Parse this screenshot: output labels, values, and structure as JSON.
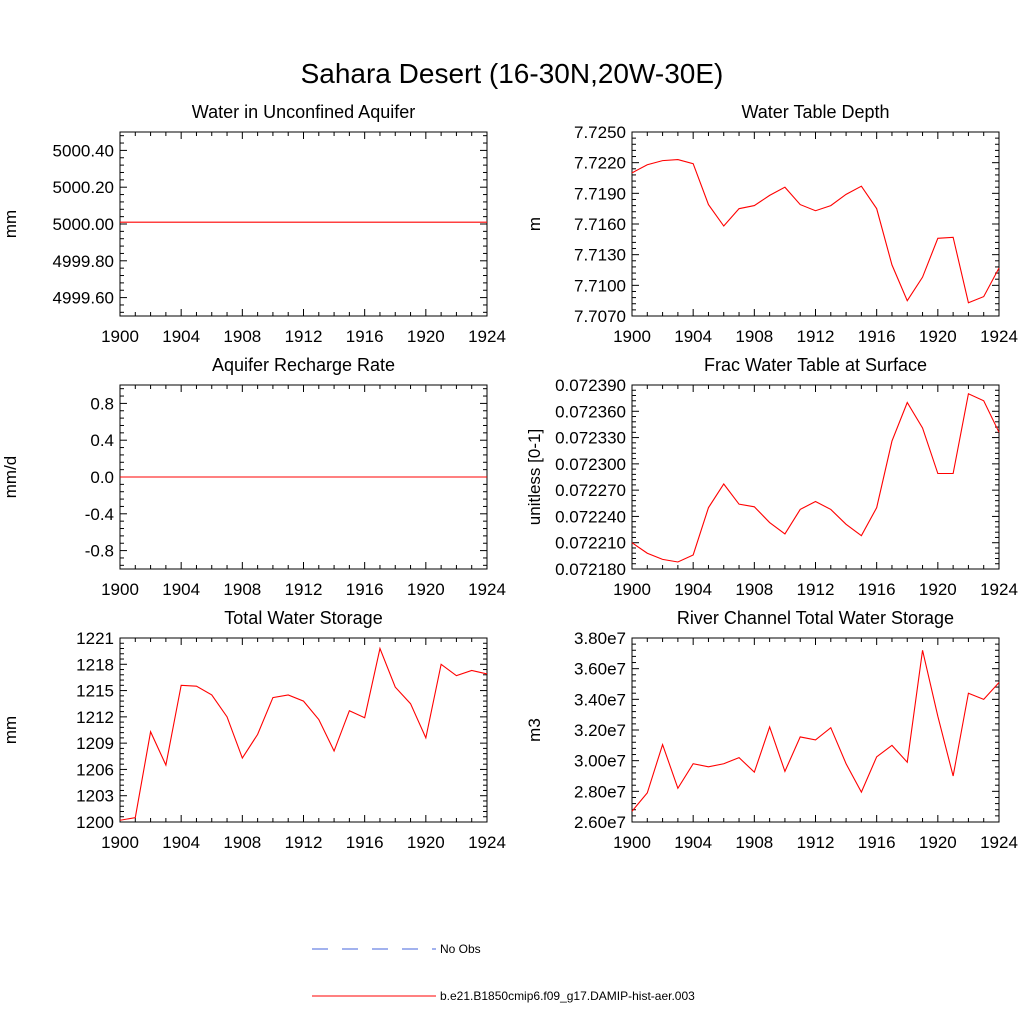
{
  "figure_title": "Sahara Desert (16-30N,20W-30E)",
  "chart_data": [
    {
      "type": "line",
      "title": "Water in Unconfined Aquifer",
      "xlabel": "",
      "ylabel": "mm",
      "xlim": [
        1900,
        1924
      ],
      "ylim": [
        4999.5,
        5000.5
      ],
      "xticks": [
        "1900",
        "1904",
        "1908",
        "1912",
        "1916",
        "1920",
        "1924"
      ],
      "yticks": [
        4999.6,
        4999.8,
        5000.0,
        5000.2,
        5000.4
      ],
      "ytick_labels": [
        "4999.60",
        "4999.80",
        "5000.00",
        "5000.20",
        "5000.40"
      ],
      "grid": false,
      "series": [
        {
          "name": "b.e21.B1850cmip6.f09_g17.DAMIP-hist-aer.003",
          "color": "#ff0000",
          "x": [
            1900,
            1901,
            1902,
            1903,
            1904,
            1905,
            1906,
            1907,
            1908,
            1909,
            1910,
            1911,
            1912,
            1913,
            1914,
            1915,
            1916,
            1917,
            1918,
            1919,
            1920,
            1921,
            1922,
            1923,
            1924
          ],
          "values": [
            5000.01,
            5000.01,
            5000.01,
            5000.01,
            5000.01,
            5000.01,
            5000.01,
            5000.01,
            5000.01,
            5000.01,
            5000.01,
            5000.01,
            5000.01,
            5000.01,
            5000.01,
            5000.01,
            5000.01,
            5000.01,
            5000.01,
            5000.01,
            5000.01,
            5000.01,
            5000.01,
            5000.01,
            5000.01
          ]
        }
      ]
    },
    {
      "type": "line",
      "title": "Water Table Depth",
      "xlabel": "",
      "ylabel": "m",
      "xlim": [
        1900,
        1924
      ],
      "ylim": [
        7.707,
        7.725
      ],
      "xticks": [
        "1900",
        "1904",
        "1908",
        "1912",
        "1916",
        "1920",
        "1924"
      ],
      "yticks": [
        7.707,
        7.71,
        7.713,
        7.716,
        7.719,
        7.722,
        7.725
      ],
      "ytick_labels": [
        "7.7070",
        "7.7100",
        "7.7130",
        "7.7160",
        "7.7190",
        "7.7220",
        "7.7250"
      ],
      "grid": false,
      "series": [
        {
          "name": "b.e21.B1850cmip6.f09_g17.DAMIP-hist-aer.003",
          "color": "#ff0000",
          "x": [
            1900,
            1901,
            1902,
            1903,
            1904,
            1905,
            1906,
            1907,
            1908,
            1909,
            1910,
            1911,
            1912,
            1913,
            1914,
            1915,
            1916,
            1917,
            1918,
            1919,
            1920,
            1921,
            1922,
            1923,
            1924
          ],
          "values": [
            7.721,
            7.7218,
            7.7222,
            7.7223,
            7.7219,
            7.7179,
            7.7158,
            7.7175,
            7.7178,
            7.7188,
            7.7196,
            7.7179,
            7.7173,
            7.7178,
            7.7189,
            7.7197,
            7.7175,
            7.712,
            7.7085,
            7.7108,
            7.7146,
            7.7147,
            7.7083,
            7.7089,
            7.7117
          ]
        }
      ]
    },
    {
      "type": "line",
      "title": "Aquifer Recharge Rate",
      "xlabel": "",
      "ylabel": "mm/d",
      "xlim": [
        1900,
        1924
      ],
      "ylim": [
        -1.0,
        1.0
      ],
      "xticks": [
        "1900",
        "1904",
        "1908",
        "1912",
        "1916",
        "1920",
        "1924"
      ],
      "yticks": [
        -0.8,
        -0.4,
        0.0,
        0.4,
        0.8
      ],
      "ytick_labels": [
        "-0.8",
        "-0.4",
        "0.0",
        "0.4",
        "0.8"
      ],
      "grid": false,
      "series": [
        {
          "name": "b.e21.B1850cmip6.f09_g17.DAMIP-hist-aer.003",
          "color": "#ff0000",
          "x": [
            1900,
            1901,
            1902,
            1903,
            1904,
            1905,
            1906,
            1907,
            1908,
            1909,
            1910,
            1911,
            1912,
            1913,
            1914,
            1915,
            1916,
            1917,
            1918,
            1919,
            1920,
            1921,
            1922,
            1923,
            1924
          ],
          "values": [
            0,
            0,
            0,
            0,
            0,
            0,
            0,
            0,
            0,
            0,
            0,
            0,
            0,
            0,
            0,
            0,
            0,
            0,
            0,
            0,
            0,
            0,
            0,
            0,
            0
          ]
        }
      ]
    },
    {
      "type": "line",
      "title": "Frac Water Table at Surface",
      "xlabel": "",
      "ylabel": "unitless [0-1]",
      "xlim": [
        1900,
        1924
      ],
      "ylim": [
        0.07218,
        0.07239
      ],
      "xticks": [
        "1900",
        "1904",
        "1908",
        "1912",
        "1916",
        "1920",
        "1924"
      ],
      "yticks": [
        0.07218,
        0.07221,
        0.07224,
        0.07227,
        0.0723,
        0.07233,
        0.07236,
        0.07239
      ],
      "ytick_labels": [
        "0.072180",
        "0.072210",
        "0.072240",
        "0.072270",
        "0.072300",
        "0.072330",
        "0.072360",
        "0.072390"
      ],
      "grid": false,
      "series": [
        {
          "name": "b.e21.B1850cmip6.f09_g17.DAMIP-hist-aer.003",
          "color": "#ff0000",
          "x": [
            1900,
            1901,
            1902,
            1903,
            1904,
            1905,
            1906,
            1907,
            1908,
            1909,
            1910,
            1911,
            1912,
            1913,
            1914,
            1915,
            1916,
            1917,
            1918,
            1919,
            1920,
            1921,
            1922,
            1923,
            1924
          ],
          "values": [
            0.07221,
            0.072198,
            0.072191,
            0.072188,
            0.072196,
            0.07225,
            0.072277,
            0.072254,
            0.072251,
            0.072233,
            0.07222,
            0.072248,
            0.072257,
            0.072248,
            0.072231,
            0.072218,
            0.07225,
            0.072326,
            0.07237,
            0.072341,
            0.072289,
            0.072289,
            0.07238,
            0.072372,
            0.072336
          ]
        }
      ]
    },
    {
      "type": "line",
      "title": "Total Water Storage",
      "xlabel": "",
      "ylabel": "mm",
      "xlim": [
        1900,
        1924
      ],
      "ylim": [
        1200,
        1221
      ],
      "xticks": [
        "1900",
        "1904",
        "1908",
        "1912",
        "1916",
        "1920",
        "1924"
      ],
      "yticks": [
        1200,
        1203,
        1206,
        1209,
        1212,
        1215,
        1218,
        1221
      ],
      "ytick_labels": [
        "1200",
        "1203",
        "1206",
        "1209",
        "1212",
        "1215",
        "1218",
        "1221"
      ],
      "grid": false,
      "series": [
        {
          "name": "b.e21.B1850cmip6.f09_g17.DAMIP-hist-aer.003",
          "color": "#ff0000",
          "x": [
            1900,
            1901,
            1902,
            1903,
            1904,
            1905,
            1906,
            1907,
            1908,
            1909,
            1910,
            1911,
            1912,
            1913,
            1914,
            1915,
            1916,
            1917,
            1918,
            1919,
            1920,
            1921,
            1922,
            1923,
            1924
          ],
          "values": [
            1200.2,
            1200.5,
            1210.3,
            1206.5,
            1215.6,
            1215.5,
            1214.5,
            1212.0,
            1207.3,
            1210.0,
            1214.2,
            1214.5,
            1213.8,
            1211.7,
            1208.1,
            1212.7,
            1211.9,
            1219.8,
            1215.4,
            1213.5,
            1209.6,
            1218.0,
            1216.7,
            1217.3,
            1216.9
          ]
        }
      ]
    },
    {
      "type": "line",
      "title": "River Channel Total Water Storage",
      "xlabel": "",
      "ylabel": "m3",
      "xlim": [
        1900,
        1924
      ],
      "ylim": [
        26000000,
        38000000
      ],
      "xticks": [
        "1900",
        "1904",
        "1908",
        "1912",
        "1916",
        "1920",
        "1924"
      ],
      "yticks": [
        26000000,
        28000000,
        30000000,
        32000000,
        34000000,
        36000000,
        38000000
      ],
      "ytick_labels": [
        "2.60e7",
        "2.80e7",
        "3.00e7",
        "3.20e7",
        "3.40e7",
        "3.60e7",
        "3.80e7"
      ],
      "grid": false,
      "series": [
        {
          "name": "b.e21.B1850cmip6.f09_g17.DAMIP-hist-aer.003",
          "color": "#ff0000",
          "x": [
            1900,
            1901,
            1902,
            1903,
            1904,
            1905,
            1906,
            1907,
            1908,
            1909,
            1910,
            1911,
            1912,
            1913,
            1914,
            1915,
            1916,
            1917,
            1918,
            1919,
            1920,
            1921,
            1922,
            1923,
            1924
          ],
          "values": [
            26700000,
            27900000,
            31050000,
            28200000,
            29800000,
            29600000,
            29800000,
            30200000,
            29250000,
            32200000,
            29300000,
            31550000,
            31350000,
            32150000,
            29800000,
            27950000,
            30250000,
            31000000,
            29900000,
            37200000,
            32900000,
            29000000,
            34400000,
            34000000,
            35100000
          ]
        }
      ]
    }
  ],
  "legend": {
    "position": "bottom-center",
    "entries": [
      {
        "label": "No Obs",
        "color": "#4466dd",
        "style": "dashed"
      },
      {
        "label": "b.e21.B1850cmip6.f09_g17.DAMIP-hist-aer.003",
        "color": "#ff0000",
        "style": "solid"
      }
    ]
  }
}
